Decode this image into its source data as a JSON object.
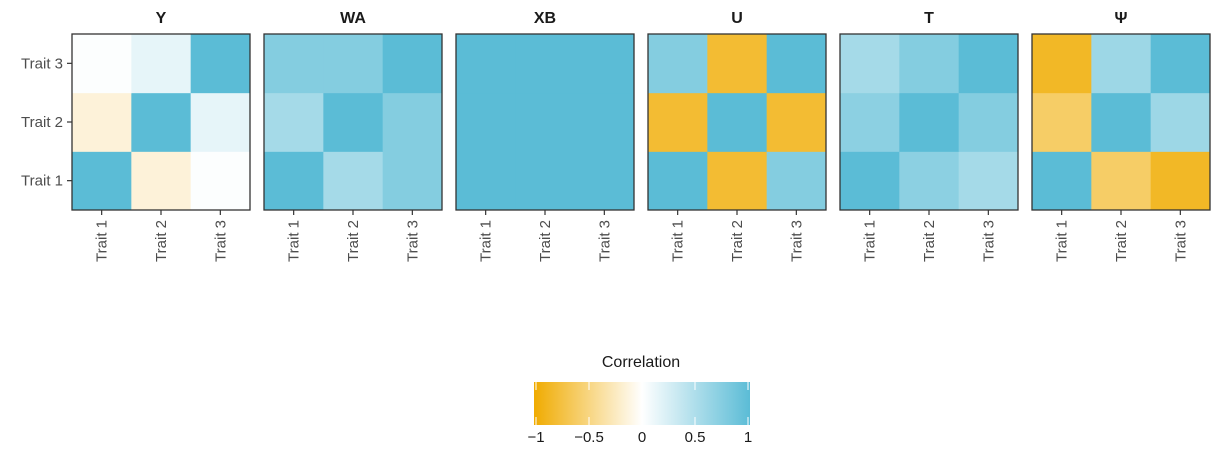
{
  "chart_data": {
    "type": "heatmap",
    "traits": [
      "Trait 1",
      "Trait 2",
      "Trait 3"
    ],
    "panels": [
      {
        "title": "Y",
        "matrix": [
          [
            1,
            -0.15,
            0.02
          ],
          [
            -0.15,
            1,
            0.15
          ],
          [
            0.02,
            0.15,
            1
          ]
        ]
      },
      {
        "title": "WA",
        "matrix": [
          [
            1,
            0.55,
            0.75
          ],
          [
            0.55,
            1,
            0.75
          ],
          [
            0.75,
            0.75,
            1
          ]
        ]
      },
      {
        "title": "XB",
        "matrix": [
          [
            1,
            1,
            1
          ],
          [
            1,
            1,
            1
          ],
          [
            1,
            1,
            1
          ]
        ]
      },
      {
        "title": "U",
        "matrix": [
          [
            1,
            -0.8,
            0.75
          ],
          [
            -0.8,
            1,
            -0.8
          ],
          [
            0.75,
            -0.8,
            1
          ]
        ]
      },
      {
        "title": "T",
        "matrix": [
          [
            1,
            0.7,
            0.55
          ],
          [
            0.7,
            1,
            0.75
          ],
          [
            0.55,
            0.75,
            1
          ]
        ]
      },
      {
        "title": "Ψ",
        "matrix": [
          [
            1,
            -0.6,
            -0.85
          ],
          [
            -0.6,
            1,
            0.6
          ],
          [
            -0.85,
            0.6,
            1
          ]
        ]
      }
    ],
    "legend": {
      "title": "Correlation",
      "ticks": [
        -1,
        -0.5,
        0,
        0.5,
        1
      ],
      "tick_labels": [
        "−1",
        "−0.5",
        "0",
        "0.5",
        "1"
      ],
      "colors": {
        "low": "#f0ab00",
        "mid": "#ffffff",
        "high": "#5bbcd6"
      },
      "placement": "bottom"
    },
    "axis_range": [
      -1,
      1
    ]
  }
}
